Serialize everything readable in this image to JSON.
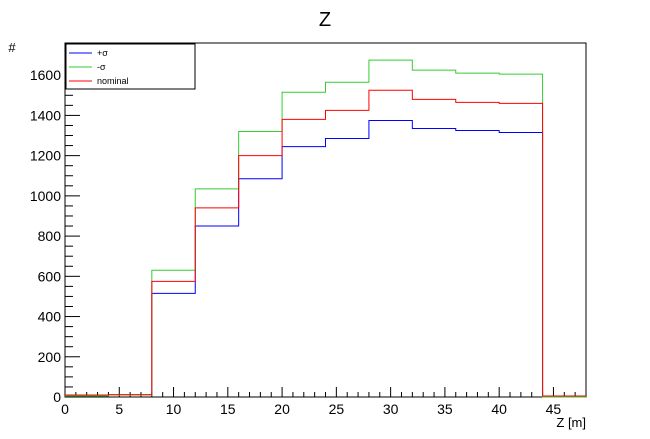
{
  "chart_data": {
    "type": "step-histogram",
    "title": "Z",
    "xlabel": "Z [m]",
    "ylabel": "#",
    "xlim": [
      0,
      48
    ],
    "ylim": [
      0,
      1760
    ],
    "x_ticks": [
      0,
      5,
      10,
      15,
      20,
      25,
      30,
      35,
      40,
      45
    ],
    "y_ticks": [
      0,
      200,
      400,
      600,
      800,
      1000,
      1200,
      1400,
      1600
    ],
    "bin_edges": [
      0,
      4,
      8,
      12,
      16,
      20,
      24,
      28,
      32,
      36,
      40,
      44,
      48
    ],
    "grid": false,
    "legend_position": "top-left",
    "series": [
      {
        "name": "+σ",
        "color": "#0000ff",
        "values": [
          5,
          10,
          515,
          850,
          1085,
          1245,
          1285,
          1375,
          1335,
          1325,
          1315,
          0
        ]
      },
      {
        "name": "-σ",
        "color": "#33cc33",
        "values": [
          5,
          10,
          630,
          1035,
          1320,
          1515,
          1565,
          1675,
          1625,
          1610,
          1605,
          0
        ]
      },
      {
        "name": "nominal",
        "color": "#ff0000",
        "values": [
          10,
          12,
          575,
          940,
          1200,
          1380,
          1425,
          1525,
          1480,
          1465,
          1460,
          5
        ]
      }
    ]
  }
}
